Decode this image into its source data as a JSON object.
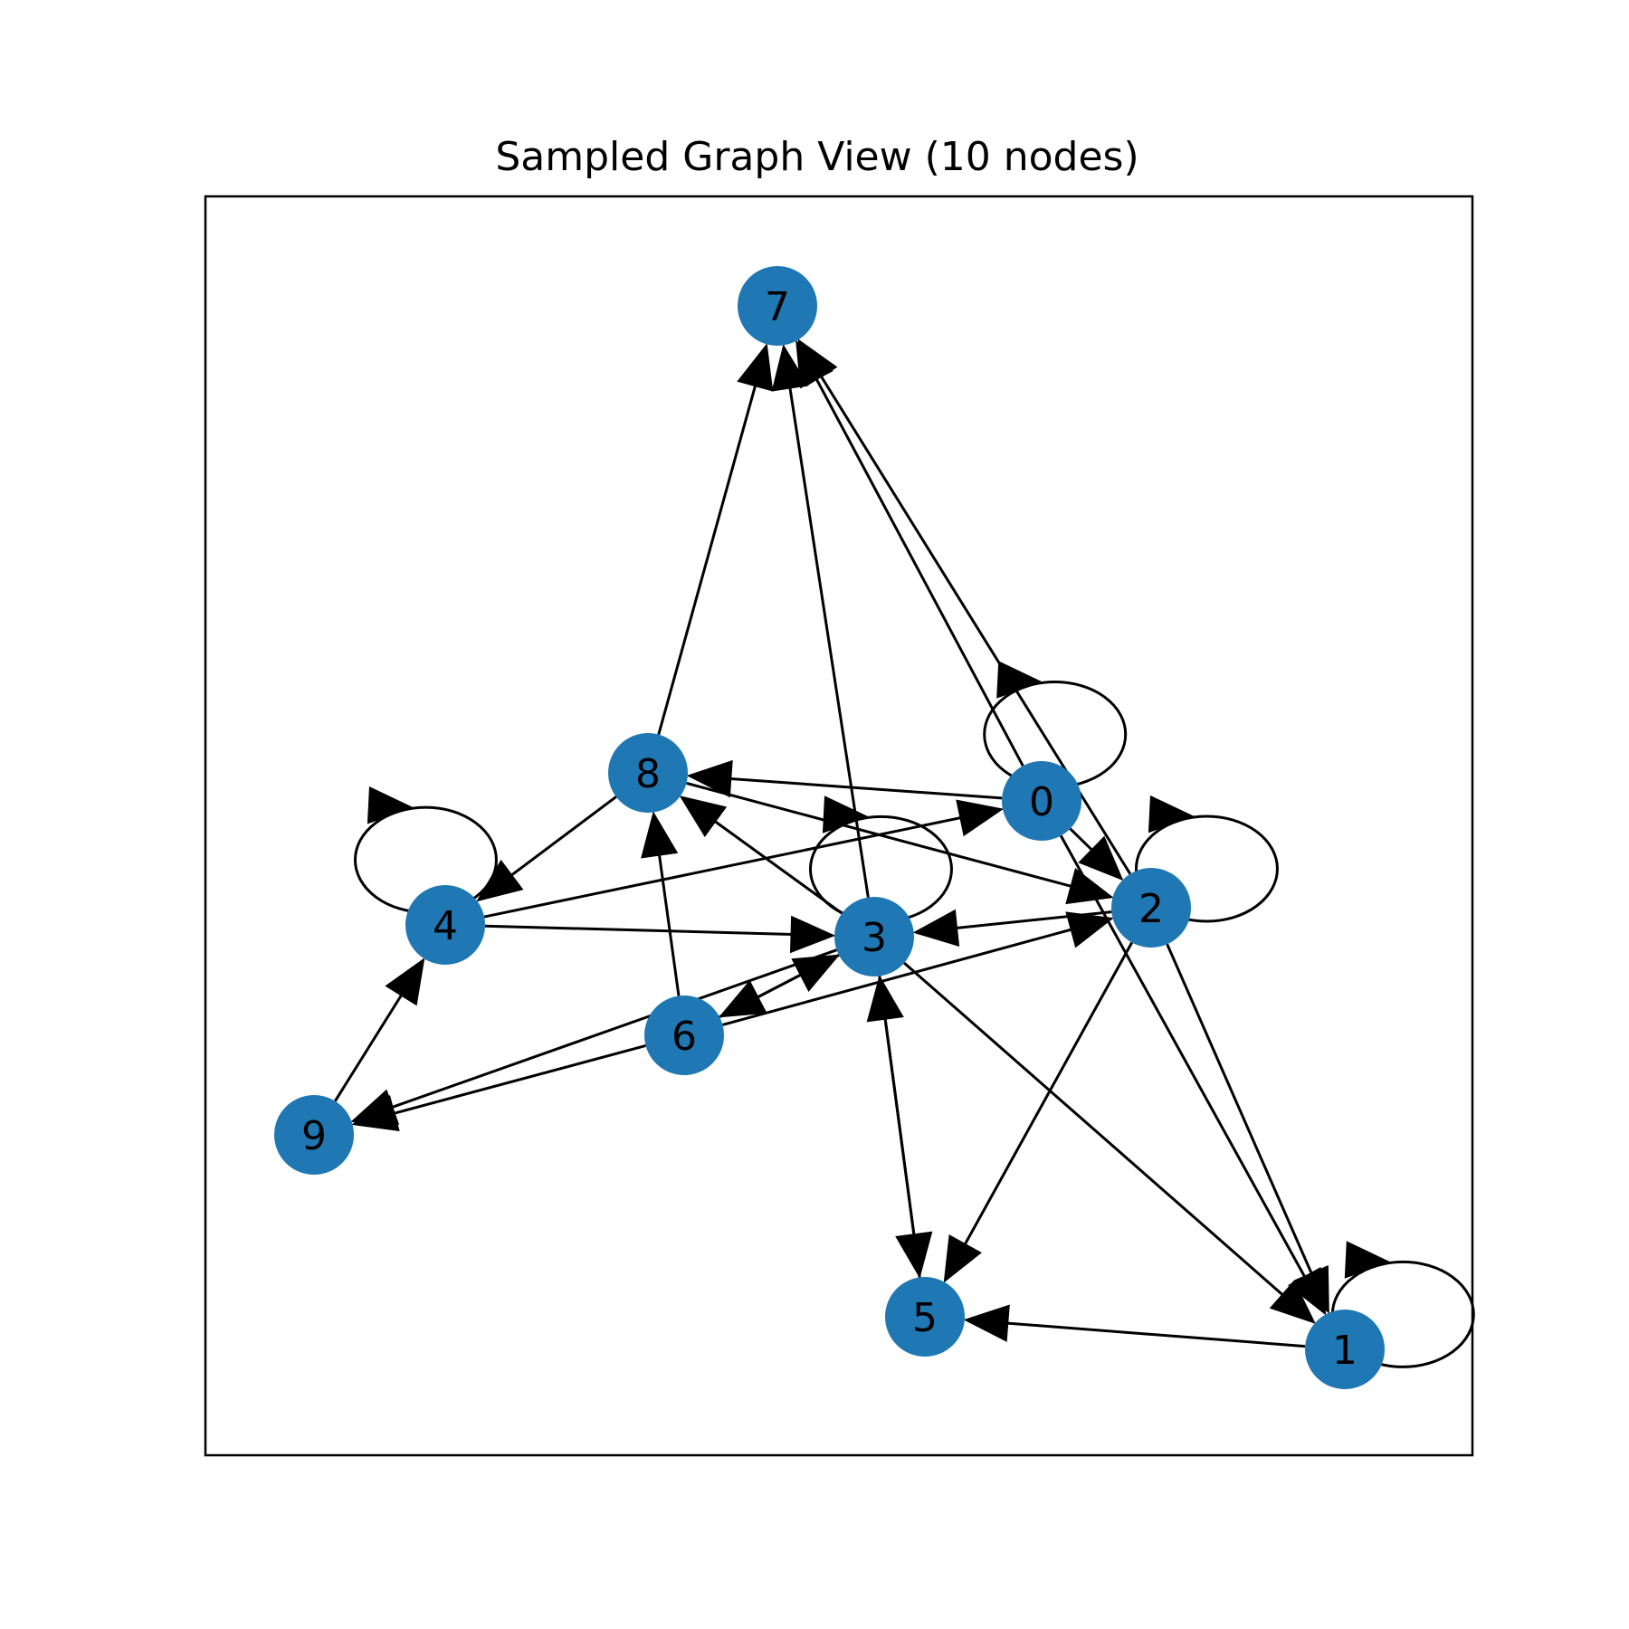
{
  "title": "Sampled Graph View (10 nodes)",
  "colors": {
    "node": "#1f77b4",
    "edge": "#000000",
    "label": "#000000",
    "frame": "#000000"
  },
  "nodes": [
    {
      "id": "0",
      "label": "0"
    },
    {
      "id": "1",
      "label": "1"
    },
    {
      "id": "2",
      "label": "2"
    },
    {
      "id": "3",
      "label": "3"
    },
    {
      "id": "4",
      "label": "4"
    },
    {
      "id": "5",
      "label": "5"
    },
    {
      "id": "6",
      "label": "6"
    },
    {
      "id": "7",
      "label": "7"
    },
    {
      "id": "8",
      "label": "8"
    },
    {
      "id": "9",
      "label": "9"
    }
  ],
  "edges": [
    {
      "from": "0",
      "to": "0"
    },
    {
      "from": "0",
      "to": "8"
    },
    {
      "from": "0",
      "to": "7"
    },
    {
      "from": "0",
      "to": "2"
    },
    {
      "from": "0",
      "to": "1"
    },
    {
      "from": "1",
      "to": "1"
    },
    {
      "from": "1",
      "to": "5"
    },
    {
      "from": "2",
      "to": "2"
    },
    {
      "from": "2",
      "to": "7"
    },
    {
      "from": "2",
      "to": "3"
    },
    {
      "from": "2",
      "to": "5"
    },
    {
      "from": "2",
      "to": "1"
    },
    {
      "from": "3",
      "to": "3"
    },
    {
      "from": "3",
      "to": "7"
    },
    {
      "from": "3",
      "to": "8"
    },
    {
      "from": "3",
      "to": "5"
    },
    {
      "from": "3",
      "to": "1"
    },
    {
      "from": "3",
      "to": "6"
    },
    {
      "from": "3",
      "to": "9"
    },
    {
      "from": "4",
      "to": "4"
    },
    {
      "from": "4",
      "to": "0"
    },
    {
      "from": "4",
      "to": "3"
    },
    {
      "from": "5",
      "to": "3"
    },
    {
      "from": "6",
      "to": "8"
    },
    {
      "from": "6",
      "to": "3"
    },
    {
      "from": "6",
      "to": "2"
    },
    {
      "from": "6",
      "to": "9"
    },
    {
      "from": "8",
      "to": "7"
    },
    {
      "from": "8",
      "to": "4"
    },
    {
      "from": "8",
      "to": "2"
    },
    {
      "from": "9",
      "to": "4"
    }
  ]
}
